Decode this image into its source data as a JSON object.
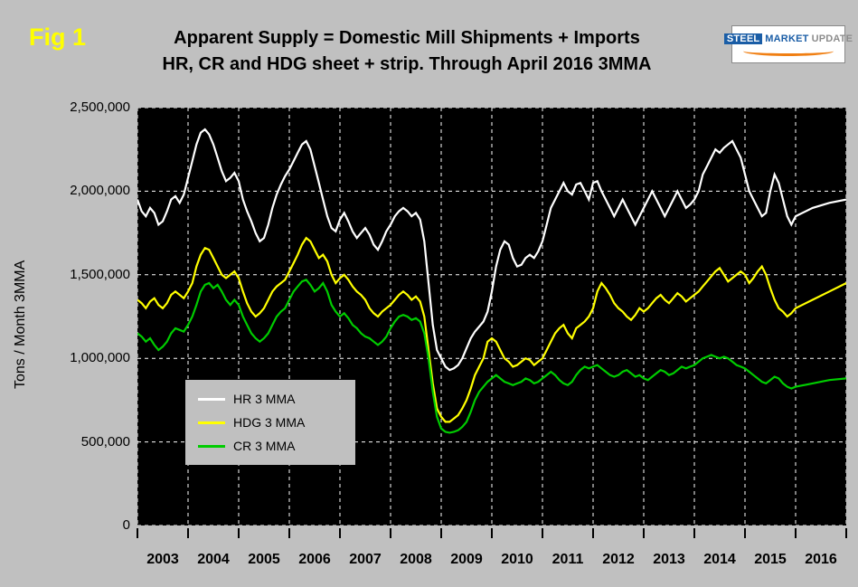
{
  "header": {
    "fig_label": "Fig 1",
    "title_line1": "Apparent Supply = Domestic Mill Shipments + Imports",
    "title_line2": "HR, CR and HDG sheet + strip. Through April 2016 3MMA"
  },
  "logo": {
    "word1": "STEEL",
    "word2": "MARKET",
    "word3": "UPDATE",
    "brand_blue": "#1a5da6",
    "brand_orange": "#f07f13"
  },
  "chart_data": {
    "type": "line",
    "title": "Apparent Supply = Domestic Mill Shipments + Imports, HR, CR and HDG sheet + strip. Through April 2016 3MMA",
    "xlabel": "",
    "ylabel": "Tons / Month 3MMA",
    "ylim": [
      0,
      2500000
    ],
    "ytick_labels": [
      "0",
      "500,000",
      "1,000,000",
      "1,500,000",
      "2,000,000",
      "2,500,000"
    ],
    "x_year_labels": [
      "2003",
      "2004",
      "2005",
      "2006",
      "2007",
      "2008",
      "2009",
      "2010",
      "2011",
      "2012",
      "2013",
      "2014",
      "2015",
      "2016"
    ],
    "x_start": "2003-01",
    "x_end": "2016-04",
    "frequency": "monthly 3MMA",
    "grid": "dashed white on black plot",
    "legend_position": "inside lower-left",
    "background": "#c0c0c0",
    "plot_background": "#000000",
    "series": [
      {
        "name": "HR 3 MMA",
        "color": "#ffffff",
        "values": [
          1950000,
          1880000,
          1850000,
          1900000,
          1870000,
          1800000,
          1820000,
          1880000,
          1950000,
          1970000,
          1930000,
          1980000,
          2080000,
          2180000,
          2280000,
          2350000,
          2370000,
          2340000,
          2280000,
          2200000,
          2120000,
          2060000,
          2080000,
          2110000,
          2060000,
          1950000,
          1880000,
          1820000,
          1750000,
          1700000,
          1720000,
          1800000,
          1900000,
          1980000,
          2040000,
          2090000,
          2130000,
          2180000,
          2230000,
          2280000,
          2300000,
          2250000,
          2150000,
          2050000,
          1950000,
          1850000,
          1780000,
          1760000,
          1830000,
          1870000,
          1820000,
          1760000,
          1720000,
          1750000,
          1780000,
          1740000,
          1680000,
          1650000,
          1700000,
          1760000,
          1800000,
          1850000,
          1880000,
          1900000,
          1880000,
          1850000,
          1870000,
          1830000,
          1700000,
          1450000,
          1200000,
          1050000,
          1000000,
          950000,
          930000,
          940000,
          960000,
          1000000,
          1060000,
          1120000,
          1160000,
          1190000,
          1220000,
          1280000,
          1400000,
          1550000,
          1650000,
          1700000,
          1680000,
          1600000,
          1550000,
          1560000,
          1600000,
          1620000,
          1600000,
          1640000,
          1700000,
          1800000,
          1900000,
          1950000,
          2000000,
          2050000,
          2000000,
          1980000,
          2040000,
          2050000,
          2000000,
          1950000,
          2050000,
          2060000,
          2000000,
          1950000,
          1900000,
          1850000,
          1900000,
          1950000,
          1900000,
          1850000,
          1800000,
          1850000,
          1900000,
          1950000,
          2000000,
          1950000,
          1900000,
          1850000,
          1900000,
          1950000,
          2000000,
          1950000,
          1900000,
          1920000,
          1950000,
          2000000,
          2100000,
          2150000,
          2200000,
          2250000,
          2230000,
          2260000,
          2280000,
          2300000,
          2250000,
          2200000,
          2100000,
          2000000,
          1950000,
          1900000,
          1850000,
          1870000,
          2000000,
          2100000,
          2050000,
          1950000,
          1850000,
          1800000,
          1850000,
          1900000,
          1930000,
          1950000
        ]
      },
      {
        "name": "HDG 3 MMA",
        "color": "#ffff00",
        "values": [
          1350000,
          1330000,
          1300000,
          1340000,
          1360000,
          1320000,
          1300000,
          1330000,
          1380000,
          1400000,
          1380000,
          1360000,
          1400000,
          1450000,
          1550000,
          1620000,
          1660000,
          1650000,
          1600000,
          1550000,
          1500000,
          1480000,
          1500000,
          1520000,
          1480000,
          1400000,
          1330000,
          1280000,
          1250000,
          1270000,
          1300000,
          1350000,
          1400000,
          1430000,
          1450000,
          1470000,
          1520000,
          1570000,
          1620000,
          1680000,
          1720000,
          1700000,
          1650000,
          1600000,
          1620000,
          1580000,
          1500000,
          1450000,
          1480000,
          1500000,
          1470000,
          1430000,
          1400000,
          1380000,
          1350000,
          1300000,
          1270000,
          1250000,
          1280000,
          1300000,
          1320000,
          1350000,
          1380000,
          1400000,
          1380000,
          1350000,
          1370000,
          1340000,
          1250000,
          1050000,
          850000,
          700000,
          650000,
          620000,
          620000,
          640000,
          660000,
          700000,
          750000,
          820000,
          900000,
          950000,
          1000000,
          1100000,
          1120000,
          1100000,
          1050000,
          1000000,
          980000,
          950000,
          960000,
          980000,
          1000000,
          990000,
          960000,
          980000,
          1000000,
          1050000,
          1100000,
          1150000,
          1180000,
          1200000,
          1150000,
          1120000,
          1180000,
          1200000,
          1220000,
          1250000,
          1300000,
          1400000,
          1450000,
          1420000,
          1380000,
          1330000,
          1300000,
          1280000,
          1250000,
          1230000,
          1260000,
          1300000,
          1280000,
          1300000,
          1330000,
          1360000,
          1380000,
          1350000,
          1330000,
          1360000,
          1390000,
          1370000,
          1340000,
          1360000,
          1380000,
          1400000,
          1430000,
          1460000,
          1490000,
          1520000,
          1540000,
          1500000,
          1460000,
          1480000,
          1500000,
          1520000,
          1500000,
          1450000,
          1480000,
          1520000,
          1550000,
          1500000,
          1420000,
          1350000,
          1300000,
          1280000,
          1250000,
          1270000,
          1300000,
          1350000,
          1400000,
          1450000
        ]
      },
      {
        "name": "CR 3 MMA",
        "color": "#00cc00",
        "values": [
          1150000,
          1130000,
          1100000,
          1120000,
          1080000,
          1050000,
          1070000,
          1100000,
          1150000,
          1180000,
          1170000,
          1160000,
          1200000,
          1250000,
          1320000,
          1400000,
          1440000,
          1450000,
          1420000,
          1440000,
          1400000,
          1350000,
          1320000,
          1350000,
          1320000,
          1250000,
          1200000,
          1150000,
          1120000,
          1100000,
          1120000,
          1150000,
          1200000,
          1250000,
          1280000,
          1300000,
          1350000,
          1400000,
          1430000,
          1460000,
          1470000,
          1440000,
          1400000,
          1420000,
          1450000,
          1400000,
          1320000,
          1280000,
          1250000,
          1270000,
          1240000,
          1200000,
          1180000,
          1150000,
          1130000,
          1120000,
          1100000,
          1080000,
          1100000,
          1130000,
          1180000,
          1220000,
          1250000,
          1260000,
          1250000,
          1230000,
          1240000,
          1220000,
          1150000,
          1000000,
          800000,
          650000,
          580000,
          560000,
          555000,
          560000,
          570000,
          590000,
          620000,
          680000,
          750000,
          800000,
          830000,
          860000,
          880000,
          900000,
          880000,
          860000,
          850000,
          840000,
          850000,
          860000,
          880000,
          870000,
          850000,
          860000,
          880000,
          900000,
          920000,
          900000,
          870000,
          850000,
          840000,
          860000,
          900000,
          930000,
          950000,
          940000,
          950000,
          960000,
          940000,
          920000,
          900000,
          890000,
          900000,
          920000,
          930000,
          910000,
          890000,
          900000,
          880000,
          870000,
          890000,
          910000,
          930000,
          920000,
          900000,
          910000,
          930000,
          950000,
          940000,
          950000,
          960000,
          980000,
          1000000,
          1010000,
          1020000,
          1010000,
          1000000,
          1010000,
          1000000,
          980000,
          960000,
          950000,
          940000,
          920000,
          900000,
          880000,
          860000,
          850000,
          870000,
          890000,
          880000,
          850000,
          830000,
          820000,
          830000,
          850000,
          870000,
          880000
        ]
      }
    ]
  }
}
